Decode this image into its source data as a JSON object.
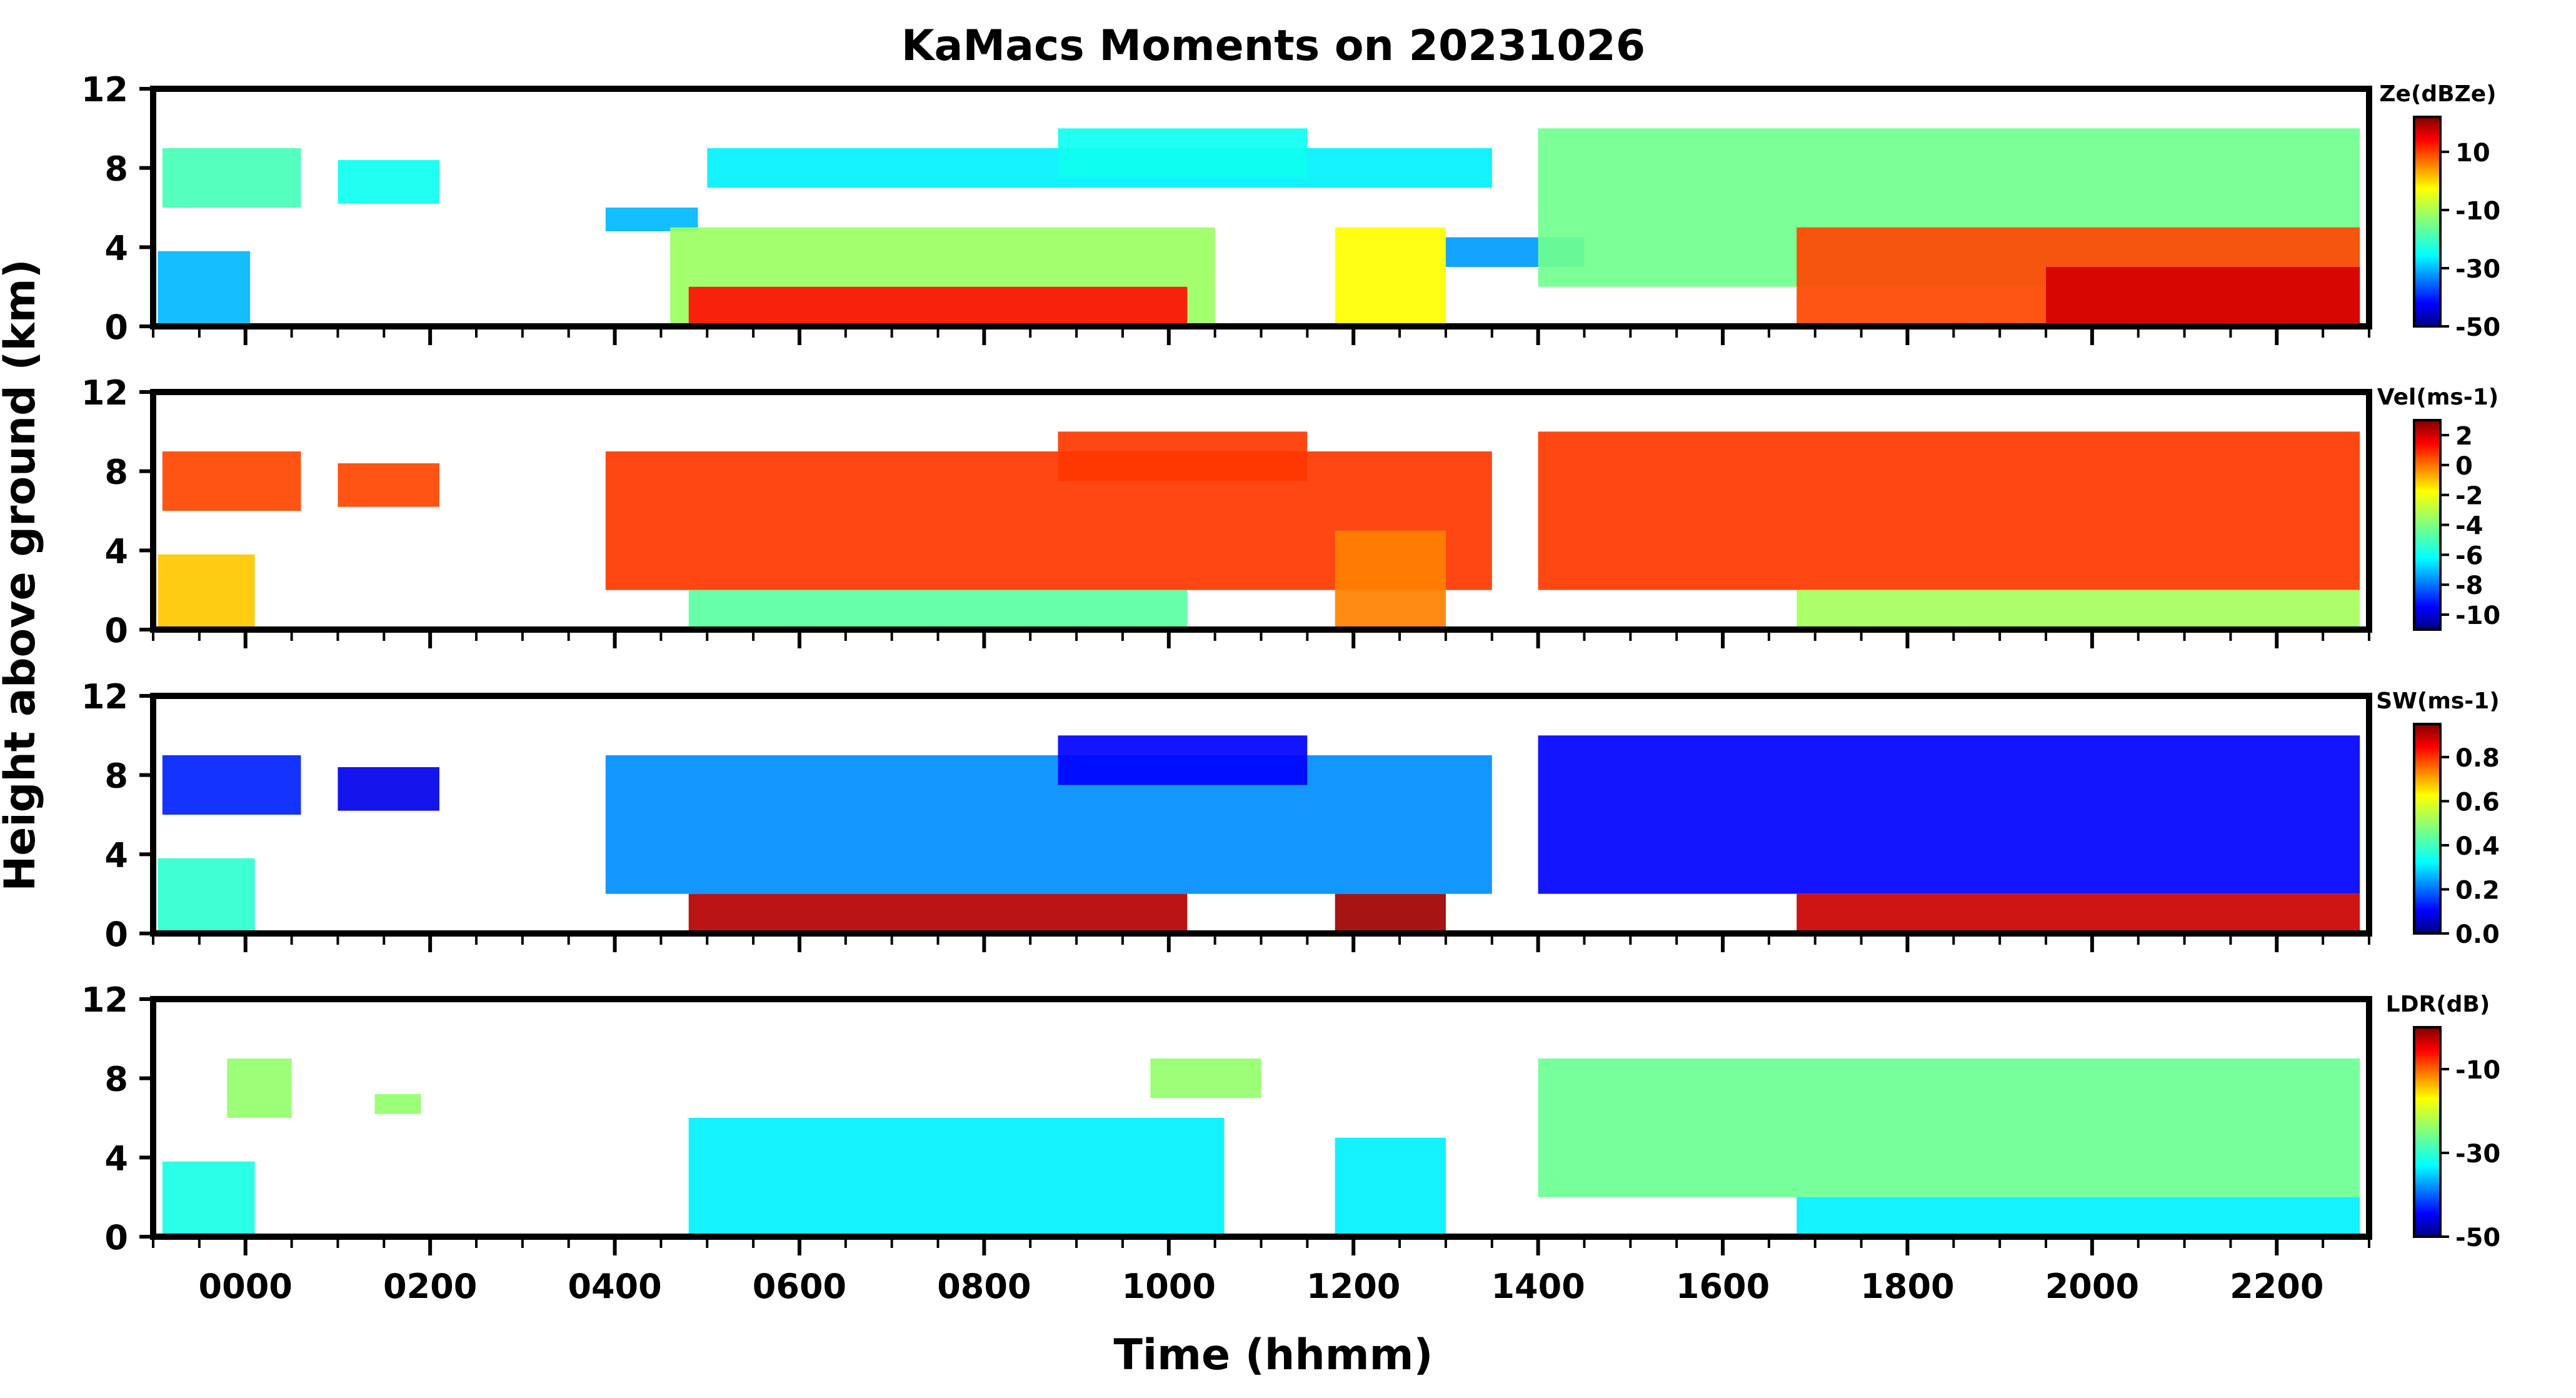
{
  "figure": {
    "title": "KaMacs Moments on 20231026",
    "xlabel": "Time (hhmm)",
    "ylabel": "Height above ground (km)"
  },
  "chart_data": {
    "type": "heatmap",
    "title": "KaMacs Moments on 20231026",
    "xlabel": "Time (hhmm)",
    "ylabel": "Height above ground (km)",
    "x_unit": "hours since 0000",
    "xlim": [
      -1.0,
      23.0
    ],
    "ylim": [
      0,
      12
    ],
    "x_ticks": [
      0,
      2,
      4,
      6,
      8,
      10,
      12,
      14,
      16,
      18,
      20,
      22
    ],
    "x_tick_labels": [
      "0000",
      "0200",
      "0400",
      "0600",
      "0800",
      "1000",
      "1200",
      "1400",
      "1600",
      "1800",
      "2000",
      "2200"
    ],
    "y_ticks": [
      0,
      4,
      8,
      12
    ],
    "y_tick_labels": [
      "0",
      "4",
      "8",
      "12"
    ],
    "colormap": "jet",
    "panels": [
      {
        "field": "Ze",
        "colorbar_label": "Ze(dBZe)",
        "vmin": -50,
        "vmax": 22,
        "cb_ticks": [
          10,
          -10,
          -30,
          -50
        ],
        "cb_tick_labels": [
          "10",
          "-10",
          "-30",
          "-50"
        ],
        "regions": [
          {
            "x0": -0.95,
            "x1": 0.05,
            "y0": 0,
            "y1": 3.8,
            "v": -28
          },
          {
            "x0": -0.9,
            "x1": 0.6,
            "y0": 6.0,
            "y1": 9.0,
            "v": -18
          },
          {
            "x0": 1.0,
            "x1": 2.1,
            "y0": 6.2,
            "y1": 8.4,
            "v": -22
          },
          {
            "x0": 3.9,
            "x1": 4.9,
            "y0": 4.8,
            "y1": 6.0,
            "v": -28
          },
          {
            "x0": 4.6,
            "x1": 10.5,
            "y0": 0,
            "y1": 5.0,
            "v": -12
          },
          {
            "x0": 4.8,
            "x1": 10.2,
            "y0": 0,
            "y1": 2.0,
            "v": 12
          },
          {
            "x0": 5.0,
            "x1": 13.5,
            "y0": 7.0,
            "y1": 9.0,
            "v": -24
          },
          {
            "x0": 8.8,
            "x1": 11.5,
            "y0": 7.5,
            "y1": 10.0,
            "v": -22
          },
          {
            "x0": 11.8,
            "x1": 13.0,
            "y0": 0,
            "y1": 5.0,
            "v": -5
          },
          {
            "x0": 13.0,
            "x1": 14.5,
            "y0": 3.0,
            "y1": 4.5,
            "v": -30
          },
          {
            "x0": 14.0,
            "x1": 22.9,
            "y0": 2.0,
            "y1": 10.0,
            "v": -15
          },
          {
            "x0": 16.8,
            "x1": 22.9,
            "y0": 0,
            "y1": 5.0,
            "v": 8
          },
          {
            "x0": 19.5,
            "x1": 22.9,
            "y0": 0,
            "y1": 3.0,
            "v": 16
          }
        ]
      },
      {
        "field": "Vel",
        "colorbar_label": "Vel(ms-1)",
        "vmin": -11,
        "vmax": 3,
        "cb_ticks": [
          2,
          0,
          -2,
          -4,
          -6,
          -8,
          -10
        ],
        "cb_tick_labels": [
          "2",
          "0",
          "-2",
          "-4",
          "-6",
          "-8",
          "-10"
        ],
        "regions": [
          {
            "x0": -0.95,
            "x1": 0.1,
            "y0": 0,
            "y1": 3.8,
            "v": -1.5
          },
          {
            "x0": -0.9,
            "x1": 0.6,
            "y0": 6.0,
            "y1": 9.0,
            "v": 0.3
          },
          {
            "x0": 1.0,
            "x1": 2.1,
            "y0": 6.2,
            "y1": 8.4,
            "v": 0.3
          },
          {
            "x0": 3.9,
            "x1": 13.5,
            "y0": 2.0,
            "y1": 9.0,
            "v": 0.5
          },
          {
            "x0": 8.8,
            "x1": 11.5,
            "y0": 7.5,
            "y1": 10.0,
            "v": 0.5
          },
          {
            "x0": 4.8,
            "x1": 10.2,
            "y0": 0,
            "y1": 2.0,
            "v": -4.5
          },
          {
            "x0": 11.8,
            "x1": 13.0,
            "y0": 0,
            "y1": 5.0,
            "v": -0.5
          },
          {
            "x0": 14.0,
            "x1": 22.9,
            "y0": 2.0,
            "y1": 10.0,
            "v": 0.5
          },
          {
            "x0": 16.8,
            "x1": 22.9,
            "y0": 0,
            "y1": 2.0,
            "v": -3.5
          }
        ]
      },
      {
        "field": "SW",
        "colorbar_label": "SW(ms-1)",
        "vmin": 0.0,
        "vmax": 0.95,
        "cb_ticks": [
          0.8,
          0.6,
          0.4,
          0.2,
          0.0
        ],
        "cb_tick_labels": [
          "0.8",
          "0.6",
          "0.4",
          "0.2",
          "0.0"
        ],
        "regions": [
          {
            "x0": -0.95,
            "x1": 0.1,
            "y0": 0,
            "y1": 3.8,
            "v": 0.4
          },
          {
            "x0": -0.9,
            "x1": 0.6,
            "y0": 6.0,
            "y1": 9.0,
            "v": 0.15
          },
          {
            "x0": 1.0,
            "x1": 2.1,
            "y0": 6.2,
            "y1": 8.4,
            "v": 0.1
          },
          {
            "x0": 3.9,
            "x1": 13.5,
            "y0": 2.0,
            "y1": 9.0,
            "v": 0.25
          },
          {
            "x0": 8.8,
            "x1": 11.5,
            "y0": 7.5,
            "y1": 10.0,
            "v": 0.12
          },
          {
            "x0": 4.8,
            "x1": 10.2,
            "y0": 0,
            "y1": 2.0,
            "v": 0.9
          },
          {
            "x0": 11.8,
            "x1": 13.0,
            "y0": 0,
            "y1": 2.0,
            "v": 0.92
          },
          {
            "x0": 14.0,
            "x1": 22.9,
            "y0": 2.0,
            "y1": 10.0,
            "v": 0.12
          },
          {
            "x0": 16.8,
            "x1": 22.9,
            "y0": 0,
            "y1": 2.0,
            "v": 0.88
          }
        ]
      },
      {
        "field": "LDR",
        "colorbar_label": "LDR(dB)",
        "vmin": -50,
        "vmax": 0,
        "cb_ticks": [
          -10,
          -30,
          -50
        ],
        "cb_tick_labels": [
          "-10",
          "-30",
          "-50"
        ],
        "regions": [
          {
            "x0": -0.9,
            "x1": 0.1,
            "y0": 0,
            "y1": 3.8,
            "v": -30
          },
          {
            "x0": -0.2,
            "x1": 0.5,
            "y0": 6.0,
            "y1": 9.0,
            "v": -24
          },
          {
            "x0": 1.4,
            "x1": 1.9,
            "y0": 6.2,
            "y1": 7.2,
            "v": -24
          },
          {
            "x0": 4.8,
            "x1": 10.6,
            "y0": 0,
            "y1": 6.0,
            "v": -32
          },
          {
            "x0": 9.8,
            "x1": 11.0,
            "y0": 7.0,
            "y1": 9.0,
            "v": -24
          },
          {
            "x0": 11.8,
            "x1": 13.0,
            "y0": 0,
            "y1": 5.0,
            "v": -32
          },
          {
            "x0": 14.0,
            "x1": 22.9,
            "y0": 2.0,
            "y1": 9.0,
            "v": -26
          },
          {
            "x0": 16.8,
            "x1": 22.9,
            "y0": 0,
            "y1": 2.0,
            "v": -32
          }
        ]
      }
    ]
  }
}
